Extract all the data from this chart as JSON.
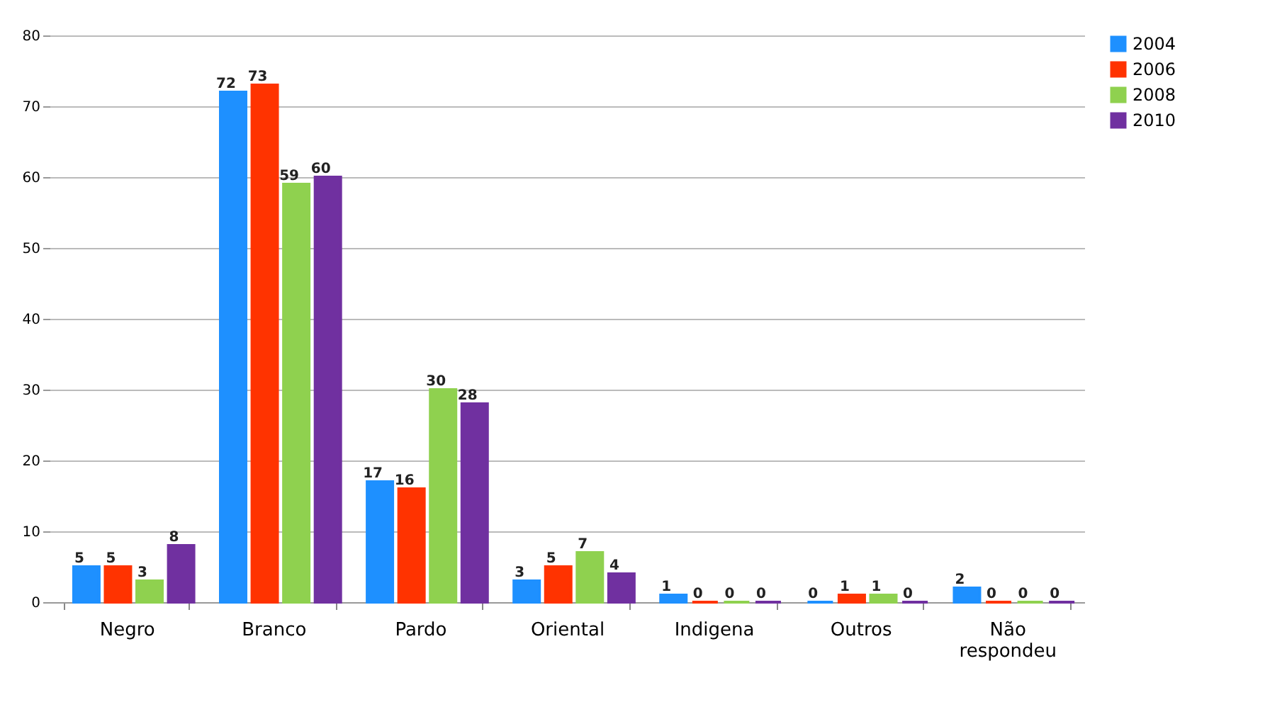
{
  "chart_data": {
    "type": "bar",
    "categories": [
      "Negro",
      "Branco",
      "Pardo",
      "Oriental",
      "Indigena",
      "Outros",
      "Não respondeu"
    ],
    "series": [
      {
        "name": "2004",
        "color": "#1e90ff",
        "values": [
          5,
          72,
          17,
          3,
          1,
          0,
          2
        ]
      },
      {
        "name": "2006",
        "color": "#ff3300",
        "values": [
          5,
          73,
          16,
          5,
          0,
          1,
          0
        ]
      },
      {
        "name": "2008",
        "color": "#8fd14f",
        "values": [
          3,
          59,
          30,
          7,
          0,
          1,
          0
        ]
      },
      {
        "name": "2010",
        "color": "#7030a0",
        "values": [
          8,
          60,
          28,
          4,
          0,
          0,
          0
        ]
      }
    ],
    "ylim": [
      0,
      80
    ],
    "yticks": [
      0,
      10,
      20,
      30,
      40,
      50,
      60,
      70,
      80
    ],
    "grid": "y",
    "legend": "right",
    "data_labels": true
  }
}
